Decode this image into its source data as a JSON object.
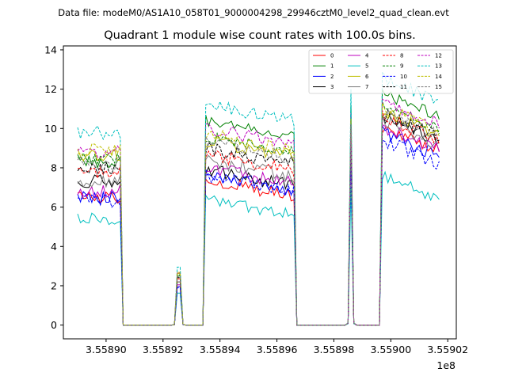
{
  "figure": {
    "suptitle": "Data file: modeM0/AS1A10_058T01_9000004298_29946cztM0_level2_quad_clean.evt"
  },
  "chart_data": {
    "type": "line",
    "title": "Quadrant 1 module wise count rates with 100.0s bins.",
    "xlabel": "",
    "ylabel": "",
    "x_offset_label": "1e8",
    "x_scale": 100000000,
    "xlim": [
      355888500,
      355902300
    ],
    "ylim": [
      -0.7,
      14.2
    ],
    "x_ticks": [
      355890000,
      355892000,
      355894000,
      355896000,
      355898000,
      355900000,
      355902000
    ],
    "x_tick_labels": [
      "3.55890",
      "3.55892",
      "3.55894",
      "3.55896",
      "3.55898",
      "3.55900",
      "3.55902"
    ],
    "y_ticks": [
      0,
      2,
      4,
      6,
      8,
      10,
      12,
      14
    ],
    "y_tick_labels": [
      "0",
      "2",
      "4",
      "6",
      "8",
      "10",
      "12",
      "14"
    ],
    "grid": false,
    "legend_position": "upper right",
    "legend_columns": 4,
    "segments": [
      {
        "type": "data",
        "start": 355889000,
        "end": 355890500
      },
      {
        "type": "gap",
        "start": 355890800,
        "end": 355892300
      },
      {
        "type": "spike",
        "start": 355892400,
        "end": 355892700,
        "peak_scale": 0.45
      },
      {
        "type": "gap",
        "start": 355892800,
        "end": 355893300
      },
      {
        "type": "data",
        "start": 355893500,
        "end": 355896600
      },
      {
        "type": "gap",
        "start": 355896800,
        "end": 355898300
      },
      {
        "type": "spike",
        "start": 355898500,
        "end": 355898700,
        "peak_scale": 1.0
      },
      {
        "type": "gap",
        "start": 355898800,
        "end": 355899500
      },
      {
        "type": "data",
        "start": 355899700,
        "end": 355901700
      }
    ],
    "series": [
      {
        "name": "0",
        "color": "#ff0000",
        "dash": "solid",
        "levels": [
          6.5,
          7.0,
          9.5
        ],
        "amplitude": 0.35
      },
      {
        "name": "1",
        "color": "#008000",
        "dash": "solid",
        "levels": [
          8.3,
          10.0,
          11.2
        ],
        "amplitude": 0.3
      },
      {
        "name": "2",
        "color": "#0000ff",
        "dash": "solid",
        "levels": [
          6.5,
          7.3,
          9.2
        ],
        "amplitude": 0.35
      },
      {
        "name": "3",
        "color": "#000000",
        "dash": "solid",
        "levels": [
          7.3,
          7.5,
          10.0
        ],
        "amplitude": 0.35
      },
      {
        "name": "4",
        "color": "#bf00bf",
        "dash": "solid",
        "levels": [
          6.8,
          7.6,
          9.5
        ],
        "amplitude": 0.35
      },
      {
        "name": "5",
        "color": "#00bfbf",
        "dash": "solid",
        "levels": [
          5.4,
          6.0,
          7.0
        ],
        "amplitude": 0.3
      },
      {
        "name": "6",
        "color": "#bfbf00",
        "dash": "solid",
        "levels": [
          8.7,
          9.0,
          10.3
        ],
        "amplitude": 0.35
      },
      {
        "name": "7",
        "color": "#808080",
        "dash": "solid",
        "levels": [
          7.3,
          8.0,
          9.8
        ],
        "amplitude": 0.35
      },
      {
        "name": "8",
        "color": "#ff0000",
        "dash": "dashed",
        "levels": [
          7.8,
          8.3,
          10.0
        ],
        "amplitude": 0.35
      },
      {
        "name": "9",
        "color": "#008000",
        "dash": "dashed",
        "levels": [
          8.5,
          9.2,
          10.6
        ],
        "amplitude": 0.3
      },
      {
        "name": "10",
        "color": "#0000ff",
        "dash": "dashed",
        "levels": [
          6.3,
          7.2,
          8.8
        ],
        "amplitude": 0.35
      },
      {
        "name": "11",
        "color": "#000000",
        "dash": "dashed",
        "levels": [
          8.0,
          8.6,
          10.2
        ],
        "amplitude": 0.35
      },
      {
        "name": "12",
        "color": "#bf00bf",
        "dash": "dashed",
        "levels": [
          8.8,
          9.6,
          10.8
        ],
        "amplitude": 0.35
      },
      {
        "name": "13",
        "color": "#00bfbf",
        "dash": "dashed",
        "levels": [
          9.8,
          10.8,
          12.0
        ],
        "amplitude": 0.35
      },
      {
        "name": "14",
        "color": "#bfbf00",
        "dash": "dashed",
        "levels": [
          8.9,
          9.3,
          10.5
        ],
        "amplitude": 0.35
      },
      {
        "name": "15",
        "color": "#808080",
        "dash": "dashed",
        "levels": [
          8.2,
          8.9,
          10.2
        ],
        "amplitude": 0.35
      }
    ]
  }
}
